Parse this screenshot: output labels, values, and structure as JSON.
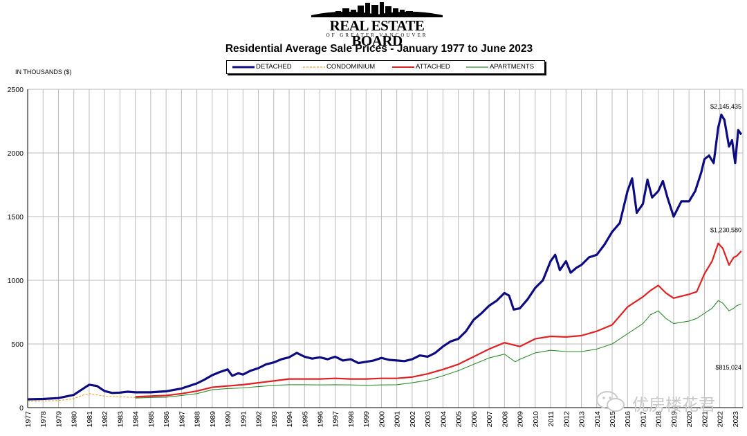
{
  "logo": {
    "name": "REAL ESTATE BOARD",
    "subtitle": "OF GREATER VANCOUVER"
  },
  "watermark": {
    "text": "优房楼花君"
  },
  "chart_data": {
    "type": "line",
    "title": "Residential Average Sale Prices  -  January 1977 to June 2023",
    "ylabel": "IN THOUSANDS ($)",
    "xlabel": "",
    "ylim": [
      0,
      2500
    ],
    "yticks": [
      0,
      500,
      1000,
      1500,
      2000,
      2500
    ],
    "xlim": [
      1977.0,
      2023.5
    ],
    "xticks": [
      "1977",
      "1978",
      "1979",
      "1980",
      "1981",
      "1982",
      "1983",
      "1984",
      "1985",
      "1986",
      "1987",
      "1988",
      "1989",
      "1990",
      "1991",
      "1992",
      "1993",
      "1994",
      "1995",
      "1996",
      "1997",
      "1998",
      "1999",
      "2000",
      "2001",
      "2002",
      "2003",
      "2004",
      "2005",
      "2006",
      "2007",
      "2008",
      "2009",
      "2010",
      "2011",
      "2012",
      "2013",
      "2014",
      "2015",
      "2016",
      "2017",
      "2018",
      "2019",
      "2020",
      "2021",
      "2022",
      "2023"
    ],
    "grid": true,
    "legend_position": "top",
    "series": [
      {
        "name": "DETACHED",
        "color": "#0c0c80",
        "style": "solid",
        "points": [
          [
            1977.0,
            65
          ],
          [
            1978.0,
            68
          ],
          [
            1979.0,
            75
          ],
          [
            1980.0,
            100
          ],
          [
            1980.5,
            140
          ],
          [
            1981.0,
            180
          ],
          [
            1981.5,
            170
          ],
          [
            1982.0,
            130
          ],
          [
            1982.5,
            115
          ],
          [
            1983.0,
            118
          ],
          [
            1983.5,
            125
          ],
          [
            1984.0,
            120
          ],
          [
            1985.0,
            120
          ],
          [
            1986.0,
            128
          ],
          [
            1987.0,
            150
          ],
          [
            1988.0,
            190
          ],
          [
            1988.5,
            220
          ],
          [
            1989.0,
            255
          ],
          [
            1989.5,
            280
          ],
          [
            1990.0,
            300
          ],
          [
            1990.3,
            250
          ],
          [
            1990.7,
            270
          ],
          [
            1991.0,
            260
          ],
          [
            1991.5,
            290
          ],
          [
            1992.0,
            310
          ],
          [
            1992.5,
            340
          ],
          [
            1993.0,
            355
          ],
          [
            1993.5,
            380
          ],
          [
            1994.0,
            395
          ],
          [
            1994.5,
            430
          ],
          [
            1995.0,
            400
          ],
          [
            1995.5,
            385
          ],
          [
            1996.0,
            395
          ],
          [
            1996.5,
            380
          ],
          [
            1997.0,
            400
          ],
          [
            1997.5,
            370
          ],
          [
            1998.0,
            380
          ],
          [
            1998.5,
            350
          ],
          [
            1999.0,
            360
          ],
          [
            1999.5,
            370
          ],
          [
            2000.0,
            390
          ],
          [
            2000.5,
            375
          ],
          [
            2001.0,
            370
          ],
          [
            2001.5,
            365
          ],
          [
            2002.0,
            380
          ],
          [
            2002.5,
            410
          ],
          [
            2003.0,
            400
          ],
          [
            2003.5,
            430
          ],
          [
            2004.0,
            480
          ],
          [
            2004.5,
            520
          ],
          [
            2005.0,
            540
          ],
          [
            2005.5,
            600
          ],
          [
            2006.0,
            690
          ],
          [
            2006.5,
            740
          ],
          [
            2007.0,
            800
          ],
          [
            2007.5,
            840
          ],
          [
            2008.0,
            900
          ],
          [
            2008.3,
            880
          ],
          [
            2008.6,
            770
          ],
          [
            2009.0,
            780
          ],
          [
            2009.5,
            850
          ],
          [
            2010.0,
            940
          ],
          [
            2010.5,
            1000
          ],
          [
            2011.0,
            1150
          ],
          [
            2011.3,
            1200
          ],
          [
            2011.6,
            1080
          ],
          [
            2012.0,
            1150
          ],
          [
            2012.3,
            1060
          ],
          [
            2012.7,
            1100
          ],
          [
            2013.0,
            1120
          ],
          [
            2013.5,
            1180
          ],
          [
            2014.0,
            1200
          ],
          [
            2014.5,
            1280
          ],
          [
            2015.0,
            1380
          ],
          [
            2015.5,
            1450
          ],
          [
            2016.0,
            1700
          ],
          [
            2016.3,
            1800
          ],
          [
            2016.6,
            1530
          ],
          [
            2017.0,
            1600
          ],
          [
            2017.3,
            1790
          ],
          [
            2017.6,
            1650
          ],
          [
            2018.0,
            1700
          ],
          [
            2018.3,
            1780
          ],
          [
            2018.6,
            1650
          ],
          [
            2019.0,
            1500
          ],
          [
            2019.5,
            1620
          ],
          [
            2020.0,
            1620
          ],
          [
            2020.4,
            1700
          ],
          [
            2020.8,
            1850
          ],
          [
            2021.0,
            1950
          ],
          [
            2021.3,
            1980
          ],
          [
            2021.6,
            1920
          ],
          [
            2021.9,
            2200
          ],
          [
            2022.1,
            2300
          ],
          [
            2022.3,
            2260
          ],
          [
            2022.6,
            2050
          ],
          [
            2022.8,
            2100
          ],
          [
            2023.0,
            1920
          ],
          [
            2023.2,
            2180
          ],
          [
            2023.4,
            2145
          ]
        ]
      },
      {
        "name": "CONDOMINIUM",
        "color": "#e8a033",
        "style": "dashed",
        "points": [
          [
            1977.0,
            50
          ],
          [
            1978.0,
            53
          ],
          [
            1979.0,
            55
          ],
          [
            1980.0,
            70
          ],
          [
            1980.5,
            95
          ],
          [
            1981.0,
            110
          ],
          [
            1981.5,
            100
          ],
          [
            1982.0,
            90
          ],
          [
            1983.0,
            85
          ],
          [
            1984.0,
            80
          ],
          [
            1985.0,
            80
          ]
        ]
      },
      {
        "name": "ATTACHED",
        "color": "#e02020",
        "style": "solid",
        "points": [
          [
            1984.0,
            85
          ],
          [
            1985.0,
            90
          ],
          [
            1986.0,
            95
          ],
          [
            1987.0,
            110
          ],
          [
            1988.0,
            130
          ],
          [
            1989.0,
            160
          ],
          [
            1990.0,
            170
          ],
          [
            1991.0,
            180
          ],
          [
            1992.0,
            195
          ],
          [
            1993.0,
            210
          ],
          [
            1994.0,
            225
          ],
          [
            1995.0,
            225
          ],
          [
            1996.0,
            225
          ],
          [
            1997.0,
            230
          ],
          [
            1998.0,
            225
          ],
          [
            1999.0,
            225
          ],
          [
            2000.0,
            230
          ],
          [
            2001.0,
            230
          ],
          [
            2002.0,
            240
          ],
          [
            2003.0,
            265
          ],
          [
            2004.0,
            300
          ],
          [
            2005.0,
            340
          ],
          [
            2006.0,
            400
          ],
          [
            2007.0,
            460
          ],
          [
            2008.0,
            510
          ],
          [
            2009.0,
            480
          ],
          [
            2010.0,
            540
          ],
          [
            2011.0,
            560
          ],
          [
            2012.0,
            555
          ],
          [
            2013.0,
            565
          ],
          [
            2014.0,
            600
          ],
          [
            2015.0,
            650
          ],
          [
            2016.0,
            790
          ],
          [
            2017.0,
            870
          ],
          [
            2017.5,
            920
          ],
          [
            2018.0,
            960
          ],
          [
            2018.5,
            900
          ],
          [
            2019.0,
            860
          ],
          [
            2020.0,
            890
          ],
          [
            2020.5,
            910
          ],
          [
            2021.0,
            1050
          ],
          [
            2021.5,
            1150
          ],
          [
            2021.9,
            1290
          ],
          [
            2022.2,
            1250
          ],
          [
            2022.6,
            1120
          ],
          [
            2022.9,
            1180
          ],
          [
            2023.1,
            1190
          ],
          [
            2023.4,
            1230
          ]
        ]
      },
      {
        "name": "APARTMENTS",
        "color": "#2e8b2e",
        "style": "solid",
        "points": [
          [
            1984.0,
            75
          ],
          [
            1985.0,
            80
          ],
          [
            1986.0,
            82
          ],
          [
            1987.0,
            95
          ],
          [
            1988.0,
            110
          ],
          [
            1989.0,
            140
          ],
          [
            1990.0,
            150
          ],
          [
            1991.0,
            155
          ],
          [
            1992.0,
            165
          ],
          [
            1993.0,
            175
          ],
          [
            1994.0,
            180
          ],
          [
            1995.0,
            180
          ],
          [
            1996.0,
            178
          ],
          [
            1997.0,
            180
          ],
          [
            1998.0,
            178
          ],
          [
            1999.0,
            175
          ],
          [
            2000.0,
            178
          ],
          [
            2001.0,
            180
          ],
          [
            2002.0,
            195
          ],
          [
            2003.0,
            215
          ],
          [
            2004.0,
            250
          ],
          [
            2005.0,
            290
          ],
          [
            2006.0,
            340
          ],
          [
            2007.0,
            390
          ],
          [
            2008.0,
            420
          ],
          [
            2008.7,
            360
          ],
          [
            2009.0,
            380
          ],
          [
            2010.0,
            430
          ],
          [
            2011.0,
            450
          ],
          [
            2012.0,
            440
          ],
          [
            2013.0,
            440
          ],
          [
            2014.0,
            460
          ],
          [
            2015.0,
            500
          ],
          [
            2016.0,
            580
          ],
          [
            2017.0,
            660
          ],
          [
            2017.5,
            730
          ],
          [
            2018.0,
            760
          ],
          [
            2018.5,
            700
          ],
          [
            2019.0,
            660
          ],
          [
            2020.0,
            680
          ],
          [
            2020.5,
            700
          ],
          [
            2021.0,
            740
          ],
          [
            2021.5,
            780
          ],
          [
            2021.9,
            840
          ],
          [
            2022.2,
            820
          ],
          [
            2022.6,
            760
          ],
          [
            2022.9,
            780
          ],
          [
            2023.1,
            800
          ],
          [
            2023.4,
            815
          ]
        ]
      }
    ],
    "annotations": [
      {
        "label": "$2,145,435",
        "series": "DETACHED"
      },
      {
        "label": "$1,230,580",
        "series": "ATTACHED"
      },
      {
        "label": "$815,024",
        "series": "APARTMENTS"
      }
    ]
  }
}
